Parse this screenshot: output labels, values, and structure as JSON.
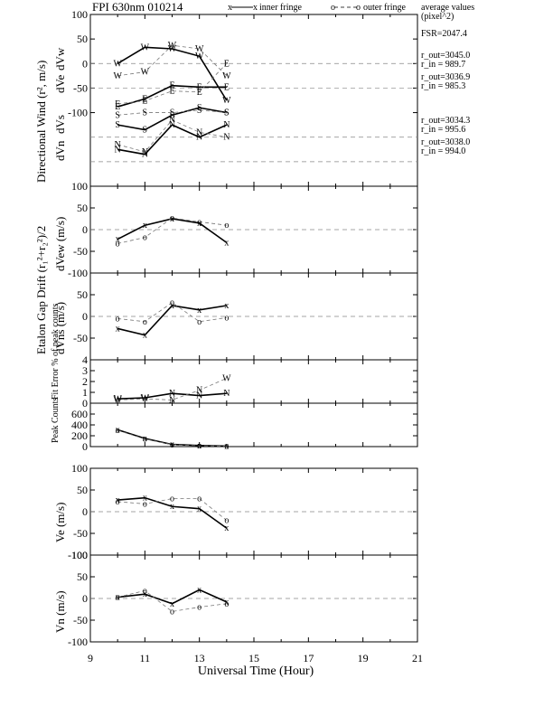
{
  "header": {
    "title": "FPI 630nm 010214",
    "legend_inner": "inner fringe",
    "legend_outer": "outer fringe",
    "avg_line1": "average values",
    "avg_line2": "(pixel^2)"
  },
  "info": {
    "fsr": "FSR=2047.4",
    "w_out": "r_out=3045.0",
    "w_in": "r_in = 989.7",
    "e_out": "r_out=3036.9",
    "e_in": "r_in = 985.3",
    "s_out": "r_out=3034.3",
    "s_in": "r_in = 995.6",
    "n_out": "r_out=3038.0",
    "n_in": "r_in = 994.0"
  },
  "labels": {
    "directional_wind": "Directional Wind (r², m/s)",
    "dVw": "dVw",
    "dVe": "dVe",
    "dVs": "dVs",
    "dVn": "dVn",
    "etalon": "Etalon Gap Drift (r₁²+r₂²)/2",
    "dVew": "dVew (m/s)",
    "dVns": "dVns (m/s)",
    "fit_error": "Fit Error % of peak counts",
    "peak_counts": "Peak Counts",
    "ve": "Ve (m/s)",
    "vn": "Vn (m/s)",
    "xlabel": "Universal Time (Hour)"
  },
  "chart_data": {
    "type": "line",
    "x_ticks": [
      "9",
      "11",
      "13",
      "15",
      "17",
      "19",
      "21"
    ],
    "x": [
      10,
      11,
      12,
      13,
      14
    ],
    "xlim": [
      9,
      21
    ],
    "panels": [
      {
        "id": "directional",
        "ylim": [
          -250,
          100
        ],
        "y_ticks": [
          "100",
          "50",
          "0",
          "-50",
          "-100"
        ],
        "series": [
          {
            "letter": "W",
            "inner": [
              0,
              33,
              30,
              15,
              -75
            ],
            "outer": [
              -25,
              -17,
              37,
              30,
              -25
            ]
          },
          {
            "letter": "E",
            "inner": [
              -88,
              -72,
              -45,
              -48,
              -48
            ],
            "outer": [
              -82,
              -76,
              -56,
              -58,
              0
            ]
          },
          {
            "letter": "S",
            "inner": [
              -125,
              -135,
              -105,
              -90,
              -100
            ],
            "outer": [
              -105,
              -100,
              -100,
              -95,
              -100
            ]
          },
          {
            "letter": "N",
            "inner": [
              -175,
              -185,
              -125,
              -150,
              -125
            ],
            "outer": [
              -165,
              -180,
              -115,
              -140,
              -150
            ]
          }
        ]
      },
      {
        "id": "dvew",
        "ylim": [
          -100,
          100
        ],
        "y_ticks": [
          "100",
          "50",
          "0",
          "-50",
          "-100"
        ],
        "inner": [
          -22,
          10,
          25,
          15,
          -30
        ],
        "outer": [
          -32,
          -18,
          27,
          18,
          10
        ]
      },
      {
        "id": "dvns",
        "ylim": [
          -100,
          100
        ],
        "y_ticks": [
          "50",
          "0",
          "-50"
        ],
        "inner": [
          -28,
          -43,
          25,
          15,
          25
        ],
        "outer": [
          -5,
          -12,
          32,
          -12,
          -3
        ]
      },
      {
        "id": "fit",
        "ylim": [
          0,
          4
        ],
        "y_ticks": [
          "4",
          "3",
          "2",
          "1",
          "0"
        ],
        "inner": [
          0.4,
          0.5,
          0.9,
          0.7,
          0.9
        ],
        "outer": [
          0.3,
          0.4,
          0.3,
          1.2,
          2.3
        ],
        "outer_letters": [
          "W",
          "W",
          "N",
          "N",
          "W"
        ],
        "inner_letters": [
          "W",
          "W",
          "N",
          "N",
          "N"
        ]
      },
      {
        "id": "peak",
        "ylim": [
          0,
          800
        ],
        "y_ticks": [
          "600",
          "400",
          "200",
          "0"
        ],
        "inner": [
          310,
          150,
          40,
          20,
          10
        ],
        "outer": [
          300,
          140,
          35,
          15,
          8
        ]
      },
      {
        "id": "ve",
        "ylim": [
          -100,
          100
        ],
        "y_ticks": [
          "100",
          "50",
          "0",
          "-50",
          "-100"
        ],
        "inner": [
          27,
          32,
          12,
          7,
          -38
        ],
        "outer": [
          23,
          18,
          30,
          30,
          -20
        ]
      },
      {
        "id": "vn",
        "ylim": [
          -100,
          100
        ],
        "y_ticks": [
          "100",
          "50",
          "0",
          "-50",
          "-100"
        ],
        "inner": [
          3,
          10,
          -12,
          20,
          -8
        ],
        "outer": [
          3,
          18,
          -30,
          -20,
          -12
        ]
      }
    ]
  }
}
